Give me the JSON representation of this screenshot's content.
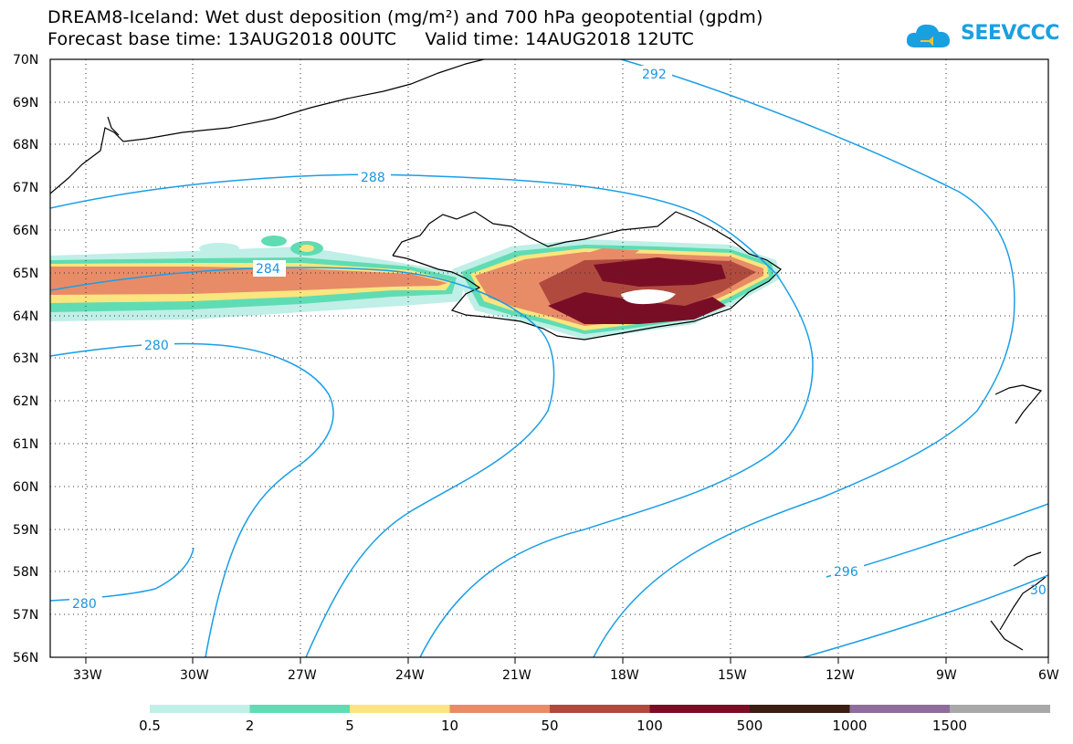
{
  "header": {
    "title_line1": "DREAM8-Iceland: Wet dust deposition (mg/m²) and 700 hPa geopotential (gpdm)",
    "title_line2": "Forecast base time: 13AUG2018 00UTC     Valid time: 14AUG2018 12UTC"
  },
  "logo": {
    "text": "SEEVCCC",
    "icon": "cloud-icon",
    "color": "#1aa0e0"
  },
  "map": {
    "lat_range": [
      56,
      70
    ],
    "lon_range": [
      -34.5,
      -6
    ],
    "lat_labels": [
      "70N",
      "69N",
      "68N",
      "67N",
      "66N",
      "65N",
      "64N",
      "63N",
      "62N",
      "61N",
      "60N",
      "59N",
      "58N",
      "57N",
      "56N"
    ],
    "lon_labels": [
      "33W",
      "30W",
      "27W",
      "24W",
      "21W",
      "18W",
      "15W",
      "12W",
      "9W",
      "6W"
    ],
    "contour_color": "#1a9ee6",
    "contour_labels": [
      "292",
      "288",
      "284",
      "280",
      "280",
      "296",
      "30"
    ]
  },
  "legend": {
    "labels": [
      "0.5",
      "2",
      "5",
      "10",
      "50",
      "100",
      "500",
      "1000",
      "1500"
    ],
    "colors": [
      "#bfefe6",
      "#5fdcb4",
      "#fae57e",
      "#e88c68",
      "#b04a3e",
      "#7a0d26",
      "#3a1e12",
      "#8e6d9c",
      "#a8a8a8"
    ]
  }
}
